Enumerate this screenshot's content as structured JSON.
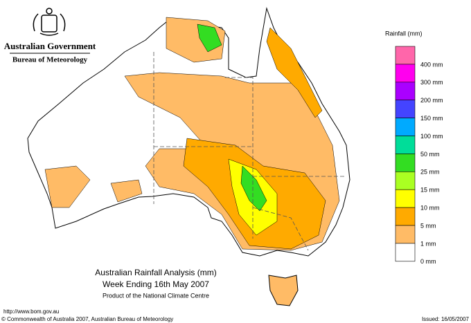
{
  "header": {
    "government": "Australian Government",
    "bureau": "Bureau of Meteorology"
  },
  "legend": {
    "title": "Rainfall (mm)",
    "items": [
      {
        "label": "400 mm",
        "color": "#ff66aa"
      },
      {
        "label": "300 mm",
        "color": "#ff00ee"
      },
      {
        "label": "200 mm",
        "color": "#aa00ff"
      },
      {
        "label": "150 mm",
        "color": "#4444ff"
      },
      {
        "label": "100 mm",
        "color": "#00aaff"
      },
      {
        "label": "50 mm",
        "color": "#00dd99"
      },
      {
        "label": "25 mm",
        "color": "#33dd22"
      },
      {
        "label": "15 mm",
        "color": "#aaff22"
      },
      {
        "label": "10 mm",
        "color": "#ffff00"
      },
      {
        "label": "5 mm",
        "color": "#ffaa00"
      },
      {
        "label": "1 mm",
        "color": "#ffbb66"
      },
      {
        "label": "0 mm",
        "color": "#ffffff"
      }
    ]
  },
  "caption": {
    "title": "Australian Rainfall Analysis (mm)",
    "subtitle": "Week Ending 16th May 2007",
    "credit": "Product of the National Climate Centre"
  },
  "footer": {
    "url": "http://www.bom.gov.au",
    "copyright": "© Commonwealth of Australia 2007, Australian Bureau of Meteorology",
    "issued": "Issued: 16/05/2007"
  }
}
